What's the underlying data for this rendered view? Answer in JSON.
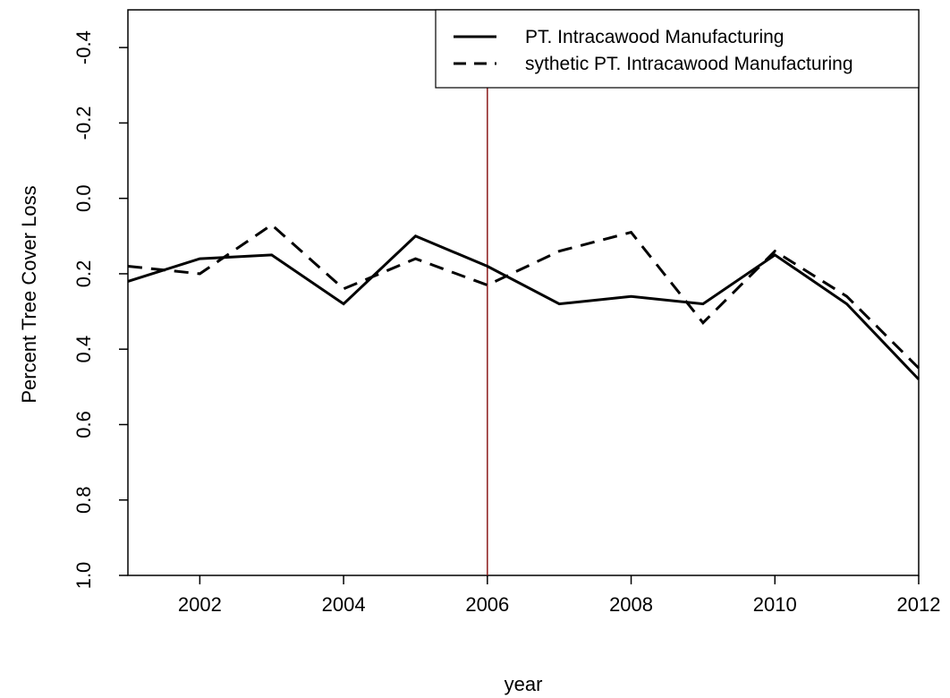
{
  "chart_data": {
    "type": "line",
    "xlabel": "year",
    "ylabel": "Percent Tree Cover Loss",
    "xlim": [
      2001,
      2012
    ],
    "ylim": [
      1.0,
      -0.5
    ],
    "y_axis_reversed": true,
    "x_ticks": [
      2002,
      2004,
      2006,
      2008,
      2010,
      2012
    ],
    "y_ticks": [
      1.0,
      0.8,
      0.6,
      0.4,
      0.2,
      0.0,
      -0.2,
      -0.4
    ],
    "y_tick_labels": [
      "1.0",
      "0.8",
      "0.6",
      "0.4",
      "0.2",
      "0.0",
      "-0.2",
      "-0.4"
    ],
    "x": [
      2001,
      2002,
      2003,
      2004,
      2005,
      2006,
      2007,
      2008,
      2009,
      2010,
      2011,
      2012
    ],
    "series": [
      {
        "name": "PT. Intracawood Manufacturing",
        "style": "solid",
        "values": [
          0.22,
          0.16,
          0.15,
          0.28,
          0.1,
          0.18,
          0.28,
          0.26,
          0.28,
          0.15,
          0.28,
          0.48
        ]
      },
      {
        "name": "sythetic PT. Intracawood Manufacturing",
        "style": "dashed",
        "values": [
          0.18,
          0.2,
          0.07,
          0.24,
          0.16,
          0.23,
          0.14,
          0.09,
          0.33,
          0.14,
          0.26,
          0.45
        ]
      }
    ],
    "reference_line": {
      "x": 2006,
      "color": "#8b1a1a"
    },
    "legend_position": "top-right",
    "grid": false,
    "colors": {
      "line": "#000000",
      "reference": "#8b1a1a"
    }
  }
}
